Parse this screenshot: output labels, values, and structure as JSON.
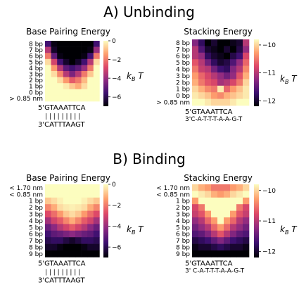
{
  "sections": [
    {
      "title": "A) Unbinding"
    },
    {
      "title": "B) Binding"
    }
  ],
  "unit_label": "k_B T",
  "colormap": [
    "#000004",
    "#3b0f70",
    "#8c2981",
    "#de4968",
    "#fe9f6d",
    "#fcfdbf"
  ],
  "chart_data": [
    {
      "id": "A-base",
      "section": "A) Unbinding",
      "type": "heatmap",
      "title": "Base Pairing Energy",
      "rows": [
        "8 bp",
        "7 bp",
        "6 bp",
        "5 bp",
        "4 bp",
        "3 bp",
        "2 bp",
        "1 bp",
        "0 bp",
        "> 0.85 nm"
      ],
      "seq_top": "5'GTAAATTCA",
      "bond_marks": "| | | | | | | | |",
      "seq_bottom": "3'CATTTAAGT",
      "vmin": -7,
      "vmax": 0,
      "cbar_ticks": [
        "0",
        "−2",
        "−4",
        "−6"
      ],
      "cbar_tick_values": [
        0,
        -2,
        -4,
        -6
      ],
      "values": [
        [
          -5.5,
          -6.8,
          -7.0,
          -7.0,
          -7.0,
          -7.0,
          -7.0,
          -7.0,
          -5.5
        ],
        [
          -3.5,
          -6.5,
          -7.0,
          -7.0,
          -7.0,
          -7.0,
          -7.0,
          -6.8,
          -4.0
        ],
        [
          -2.0,
          -5.0,
          -6.8,
          -7.0,
          -7.0,
          -7.0,
          -6.8,
          -5.5,
          -2.0
        ],
        [
          -0.5,
          -3.0,
          -5.5,
          -6.5,
          -7.0,
          -6.5,
          -5.5,
          -3.5,
          -0.5
        ],
        [
          0,
          -1.5,
          -3.5,
          -5.0,
          -5.5,
          -5.0,
          -4.0,
          -2.0,
          0
        ],
        [
          0,
          -0.5,
          -1.8,
          -3.5,
          -4.5,
          -3.5,
          -2.0,
          -0.8,
          0
        ],
        [
          0,
          0,
          -0.5,
          -1.5,
          -2.5,
          -2.0,
          -1.0,
          0,
          0
        ],
        [
          0,
          0,
          0,
          -0.3,
          -0.8,
          -1.2,
          -0.5,
          0,
          0
        ],
        [
          0,
          0,
          0,
          0,
          0,
          0,
          0,
          0,
          0
        ],
        [
          0,
          0,
          0,
          0,
          0,
          0,
          0,
          0,
          0
        ]
      ]
    },
    {
      "id": "A-stack",
      "section": "A) Unbinding",
      "type": "heatmap",
      "title": "Stacking Energy",
      "rows": [
        "8 bp",
        "7 bp",
        "6 bp",
        "5 bp",
        "4 bp",
        "3 bp",
        "2 bp",
        "1 bp",
        "0 bp",
        "> 0.85 nm"
      ],
      "seq_top": "5'GTAAATTCA",
      "seq_bottom": "3'C-A-T-T-T-A-A-G-T",
      "vmin": -12.2,
      "vmax": -9.8,
      "cbar_ticks": [
        "−10",
        "−11",
        "−12"
      ],
      "cbar_tick_values": [
        -10,
        -11,
        -12
      ],
      "values": [
        [
          -11.3,
          -11.8,
          -12.2,
          -12.0,
          -12.2,
          -12.2,
          -12.1,
          -12.0,
          -11.0
        ],
        [
          -11.0,
          -11.6,
          -12.0,
          -12.1,
          -12.2,
          -12.0,
          -12.2,
          -11.9,
          -11.2
        ],
        [
          -11.0,
          -11.2,
          -11.8,
          -12.0,
          -12.1,
          -12.2,
          -11.9,
          -11.7,
          -10.8
        ],
        [
          -10.7,
          -11.0,
          -11.4,
          -11.8,
          -12.0,
          -11.9,
          -11.6,
          -11.2,
          -10.6
        ],
        [
          -10.5,
          -10.9,
          -11.0,
          -11.4,
          -11.7,
          -11.8,
          -11.3,
          -11.0,
          -10.4
        ],
        [
          -10.3,
          -10.6,
          -10.8,
          -11.0,
          -11.2,
          -11.4,
          -11.2,
          -10.7,
          -10.2
        ],
        [
          -10.2,
          -10.5,
          -10.7,
          -10.8,
          -11.1,
          -11.0,
          -10.8,
          -10.5,
          -10.0
        ],
        [
          -10.0,
          -10.2,
          -10.4,
          -10.5,
          -9.9,
          -10.6,
          -10.3,
          -10.1,
          -9.9
        ],
        [
          -9.9,
          -10.0,
          -10.1,
          -10.3,
          -10.4,
          -10.2,
          -10.1,
          -10.0,
          -9.9
        ],
        [
          -9.8,
          -9.8,
          -9.9,
          -10.0,
          -10.0,
          -10.0,
          -9.9,
          -9.8,
          -9.8
        ]
      ]
    },
    {
      "id": "B-base",
      "section": "B) Binding",
      "type": "heatmap",
      "title": "Base Pairing Energy",
      "rows": [
        "< 1.70 nm",
        "< 0.85 nm",
        "1 bp",
        "2 bp",
        "3 bp",
        "4 bp",
        "5 bp",
        "6 bp",
        "7 bp",
        "8 bp",
        "9 bp"
      ],
      "seq_top": "5'GTAAATTCA",
      "bond_marks": "| | | | | | | | |",
      "seq_bottom": "3'CATTTAAGT",
      "vmin": -7,
      "vmax": 0,
      "cbar_ticks": [
        "0",
        "−2",
        "−4",
        "−6"
      ],
      "cbar_tick_values": [
        0,
        -2,
        -4,
        -6
      ],
      "values": [
        [
          0,
          0,
          0,
          0,
          0,
          0,
          0,
          0,
          0
        ],
        [
          0,
          0,
          0,
          0,
          0,
          0,
          0,
          0,
          0
        ],
        [
          -0.8,
          -0.5,
          -0.2,
          0,
          0,
          0,
          -0.2,
          -0.5,
          -0.8
        ],
        [
          -1.8,
          -1.2,
          -0.5,
          -0.3,
          -0.2,
          -0.3,
          -0.5,
          -1.2,
          -1.8
        ],
        [
          -2.8,
          -2.2,
          -1.5,
          -0.8,
          -0.5,
          -0.8,
          -1.5,
          -2.2,
          -2.8
        ],
        [
          -3.8,
          -3.0,
          -2.5,
          -1.8,
          -1.2,
          -1.8,
          -2.5,
          -3.0,
          -3.8
        ],
        [
          -4.8,
          -4.2,
          -3.5,
          -3.0,
          -2.5,
          -3.0,
          -3.5,
          -4.2,
          -4.8
        ],
        [
          -5.5,
          -5.0,
          -4.8,
          -4.5,
          -4.2,
          -4.5,
          -4.8,
          -5.0,
          -5.5
        ],
        [
          -6.0,
          -5.8,
          -5.8,
          -6.2,
          -6.5,
          -6.2,
          -5.8,
          -5.8,
          -6.0
        ],
        [
          -6.5,
          -6.5,
          -6.8,
          -7.0,
          -7.0,
          -7.0,
          -6.8,
          -6.5,
          -6.5
        ],
        [
          -7.0,
          -7.0,
          -7.0,
          -7.0,
          -7.0,
          -7.0,
          -7.0,
          -7.0,
          -7.0
        ]
      ]
    },
    {
      "id": "B-stack",
      "section": "B) Binding",
      "type": "heatmap",
      "title": "Stacking Energy",
      "rows": [
        "< 1.70 nm",
        "< 0.85 nm",
        "1 bp",
        "2 bp",
        "3 bp",
        "4 bp",
        "5 bp",
        "6 bp",
        "7 bp",
        "8 bp",
        "9 bp"
      ],
      "seq_top": "5'GTAAATTCA",
      "seq_bottom": "3' C-A-T-T-T-A-A-G-T",
      "vmin": -12.2,
      "vmax": -9.8,
      "cbar_ticks": [
        "−10",
        "−11",
        "−12"
      ],
      "cbar_tick_values": [
        -10,
        -11,
        -12
      ],
      "values": [
        [
          -10.0,
          -10.2,
          -10.3,
          -10.5,
          -10.5,
          -10.5,
          -10.3,
          -10.2,
          -10.0
        ],
        [
          -9.8,
          -9.9,
          -10.0,
          -10.2,
          -10.3,
          -10.2,
          -10.0,
          -9.9,
          -9.8
        ],
        [
          -10.3,
          -9.8,
          -9.8,
          -9.8,
          -9.8,
          -9.8,
          -9.8,
          -9.8,
          -10.3
        ],
        [
          -10.8,
          -10.5,
          -9.8,
          -9.8,
          -9.8,
          -9.8,
          -9.8,
          -10.5,
          -10.8
        ],
        [
          -10.9,
          -10.7,
          -10.3,
          -9.8,
          -9.8,
          -9.8,
          -10.3,
          -10.7,
          -10.9
        ],
        [
          -11.2,
          -11.0,
          -10.6,
          -10.3,
          -9.8,
          -10.3,
          -10.6,
          -11.0,
          -11.2
        ],
        [
          -11.4,
          -11.2,
          -11.0,
          -10.6,
          -10.3,
          -10.6,
          -11.0,
          -11.2,
          -11.4
        ],
        [
          -11.6,
          -11.5,
          -11.3,
          -11.0,
          -10.7,
          -11.0,
          -11.3,
          -11.5,
          -11.6
        ],
        [
          -11.9,
          -11.8,
          -11.7,
          -11.5,
          -11.3,
          -11.5,
          -11.7,
          -11.8,
          -11.9
        ],
        [
          -12.1,
          -12.0,
          -12.0,
          -11.9,
          -11.8,
          -11.9,
          -12.0,
          -12.0,
          -12.1
        ],
        [
          -12.2,
          -12.2,
          -12.2,
          -12.2,
          -12.2,
          -12.2,
          -12.2,
          -12.2,
          -12.2
        ]
      ]
    }
  ]
}
